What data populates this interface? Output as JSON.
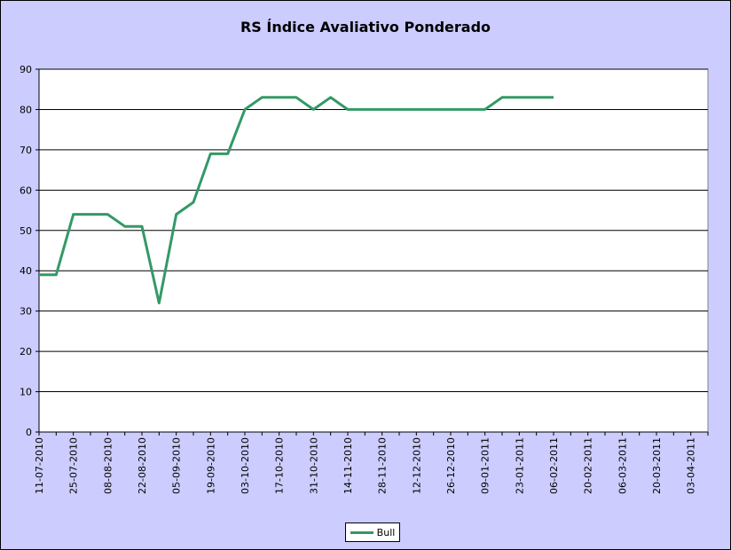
{
  "chart_data": {
    "type": "line",
    "title": "RS Índice Avaliativo Ponderado",
    "xlabel": "",
    "ylabel": "",
    "ylim": [
      0,
      90
    ],
    "yticks": [
      0,
      10,
      20,
      30,
      40,
      50,
      60,
      70,
      80,
      90
    ],
    "x_tick_labels": [
      "11-07-2010",
      "25-07-2010",
      "08-08-2010",
      "22-08-2010",
      "05-09-2010",
      "19-09-2010",
      "03-10-2010",
      "17-10-2010",
      "31-10-2010",
      "14-11-2010",
      "28-11-2010",
      "12-12-2010",
      "26-12-2010",
      "09-01-2011",
      "23-01-2011",
      "06-02-2011",
      "20-02-2011",
      "06-03-2011",
      "20-03-2011",
      "03-04-2011"
    ],
    "x_range": [
      "11-07-2010",
      "10-04-2011"
    ],
    "grid": "horizontal",
    "legend_position": "bottom",
    "series": [
      {
        "name": "Bull",
        "color": "#339966",
        "x": [
          "11-07-2010",
          "18-07-2010",
          "25-07-2010",
          "01-08-2010",
          "08-08-2010",
          "15-08-2010",
          "22-08-2010",
          "29-08-2010",
          "05-09-2010",
          "12-09-2010",
          "19-09-2010",
          "26-09-2010",
          "03-10-2010",
          "10-10-2010",
          "17-10-2010",
          "24-10-2010",
          "31-10-2010",
          "07-11-2010",
          "14-11-2010",
          "21-11-2010",
          "28-11-2010",
          "05-12-2010",
          "12-12-2010",
          "19-12-2010",
          "26-12-2010",
          "02-01-2011",
          "09-01-2011",
          "16-01-2011",
          "23-01-2011",
          "30-01-2011",
          "06-02-2011"
        ],
        "values": [
          39,
          39,
          54,
          54,
          54,
          51,
          51,
          32,
          54,
          57,
          69,
          69,
          80,
          83,
          83,
          83,
          80,
          83,
          80,
          80,
          80,
          80,
          80,
          80,
          80,
          80,
          80,
          83,
          83,
          83,
          83
        ]
      }
    ]
  }
}
